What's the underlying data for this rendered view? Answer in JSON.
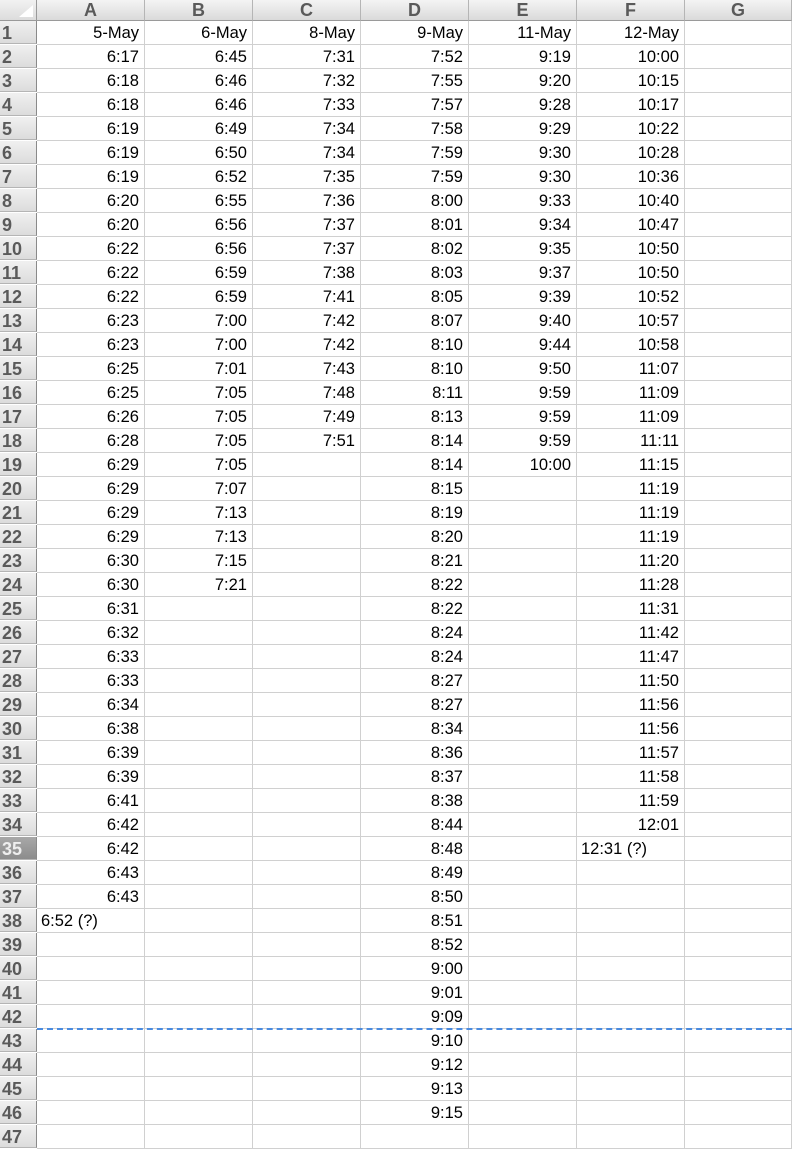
{
  "columns": [
    "A",
    "B",
    "C",
    "D",
    "E",
    "F",
    "G"
  ],
  "rows_visible": 47,
  "selected_row": 35,
  "page_break_after_row": 42,
  "colors": {
    "page_break": "#4a8be0",
    "gridline": "#d0d0d0",
    "header_bg": "#e6e6e6"
  },
  "cells": {
    "A": [
      "5-May",
      "6:17",
      "6:18",
      "6:18",
      "6:19",
      "6:19",
      "6:19",
      "6:20",
      "6:20",
      "6:22",
      "6:22",
      "6:22",
      "6:23",
      "6:23",
      "6:25",
      "6:25",
      "6:26",
      "6:28",
      "6:29",
      "6:29",
      "6:29",
      "6:29",
      "6:30",
      "6:30",
      "6:31",
      "6:32",
      "6:33",
      "6:33",
      "6:34",
      "6:38",
      "6:39",
      "6:39",
      "6:41",
      "6:42",
      "6:42",
      "6:43",
      "6:43",
      "6:52 (?)"
    ],
    "B": [
      "6-May",
      "6:45",
      "6:46",
      "6:46",
      "6:49",
      "6:50",
      "6:52",
      "6:55",
      "6:56",
      "6:56",
      "6:59",
      "6:59",
      "7:00",
      "7:00",
      "7:01",
      "7:05",
      "7:05",
      "7:05",
      "7:05",
      "7:07",
      "7:13",
      "7:13",
      "7:15",
      "7:21"
    ],
    "C": [
      "8-May",
      "7:31",
      "7:32",
      "7:33",
      "7:34",
      "7:34",
      "7:35",
      "7:36",
      "7:37",
      "7:37",
      "7:38",
      "7:41",
      "7:42",
      "7:42",
      "7:43",
      "7:48",
      "7:49",
      "7:51"
    ],
    "D": [
      "9-May",
      "7:52",
      "7:55",
      "7:57",
      "7:58",
      "7:59",
      "7:59",
      "8:00",
      "8:01",
      "8:02",
      "8:03",
      "8:05",
      "8:07",
      "8:10",
      "8:10",
      "8:11",
      "8:13",
      "8:14",
      "8:14",
      "8:15",
      "8:19",
      "8:20",
      "8:21",
      "8:22",
      "8:22",
      "8:24",
      "8:24",
      "8:27",
      "8:27",
      "8:34",
      "8:36",
      "8:37",
      "8:38",
      "8:44",
      "8:48",
      "8:49",
      "8:50",
      "8:51",
      "8:52",
      "9:00",
      "9:01",
      "9:09",
      "9:10",
      "9:12",
      "9:13",
      "9:15"
    ],
    "E": [
      "11-May",
      "9:19",
      "9:20",
      "9:28",
      "9:29",
      "9:30",
      "9:30",
      "9:33",
      "9:34",
      "9:35",
      "9:37",
      "9:39",
      "9:40",
      "9:44",
      "9:50",
      "9:59",
      "9:59",
      "9:59",
      "10:00"
    ],
    "F": [
      "12-May",
      "10:00",
      "10:15",
      "10:17",
      "10:22",
      "10:28",
      "10:36",
      "10:40",
      "10:47",
      "10:50",
      "10:50",
      "10:52",
      "10:57",
      "10:58",
      "11:07",
      "11:09",
      "11:09",
      "11:11",
      "11:15",
      "11:19",
      "11:19",
      "11:19",
      "11:20",
      "11:28",
      "11:31",
      "11:42",
      "11:47",
      "11:50",
      "11:56",
      "11:56",
      "11:57",
      "11:58",
      "11:59",
      "12:01",
      "12:31 (?)"
    ],
    "G": []
  }
}
